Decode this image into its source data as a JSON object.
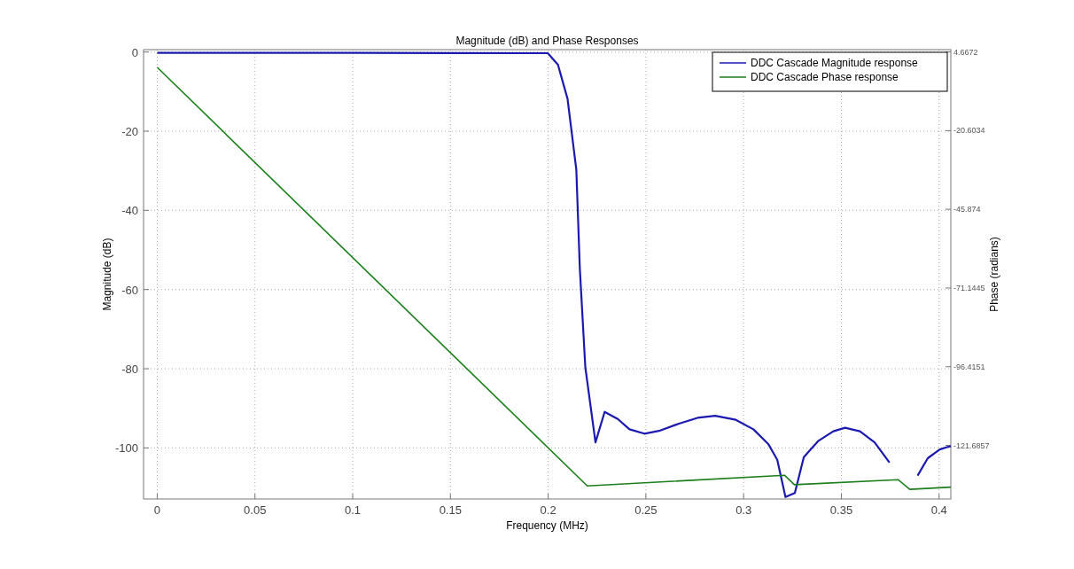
{
  "chart_data": {
    "type": "line",
    "title": "Magnitude (dB) and Phase Responses",
    "xlabel": "Frequency (MHz)",
    "ylabel": "Magnitude (dB)",
    "y2label": "Phase (radians)",
    "xlim": [
      -0.007,
      0.406
    ],
    "xticks": [
      0,
      0.05,
      0.1,
      0.15,
      0.2,
      0.25,
      0.3,
      0.35,
      0.4
    ],
    "ylim": [
      -112.9,
      0.6
    ],
    "yticks": [
      -100,
      -80,
      -60,
      -40,
      -20,
      0
    ],
    "y2lim": [
      -138.9,
      5.4
    ],
    "y2ticks": [
      -121.6857,
      -96.4151,
      -71.1445,
      -45.874,
      -20.6034,
      4.6672
    ],
    "grid": true,
    "legend": "top right",
    "line_style": "solid",
    "series": [
      {
        "name": "DDC Cascade Magnitude response",
        "color": "#1a1ab0",
        "x": [
          0,
          0.1,
          0.1998,
          0.205,
          0.2099,
          0.2144,
          0.2162,
          0.219,
          0.2242,
          0.2289,
          0.2356,
          0.2416,
          0.2492,
          0.2567,
          0.2673,
          0.2764,
          0.2854,
          0.296,
          0.305,
          0.3126,
          0.3172,
          0.3214,
          0.3262,
          0.3308,
          0.3383,
          0.3459,
          0.3519,
          0.3595,
          0.367,
          0.3746,
          0.3803,
          0.383,
          0.3867,
          0.389,
          0.3942,
          0.4003,
          0.4048,
          0.406
        ],
        "values": [
          -0.2,
          -0.2,
          -0.3,
          -3.2,
          -11.8,
          -29.7,
          -54.7,
          -79.6,
          -98.6,
          -90.9,
          -92.7,
          -95.3,
          -96.4,
          -95.7,
          -93.8,
          -92.4,
          -91.9,
          -92.9,
          -95.3,
          -99.0,
          -103.0,
          -112.4,
          -111.4,
          -102.3,
          -98.2,
          -95.8,
          -94.9,
          -95.8,
          -98.6,
          -103.7,
          null,
          null,
          null,
          -107.0,
          -102.6,
          -100.4,
          -99.7,
          -99.6
        ]
      },
      {
        "name": "DDC Cascade Phase response",
        "color": "#1a7f1a",
        "axis": "y2",
        "x": [
          0,
          0.22,
          0.321,
          0.326,
          0.379,
          0.385,
          0.406
        ],
        "values": [
          -0.3,
          -134.7,
          -131.3,
          -134.3,
          -132.7,
          -135.8,
          -135.1
        ]
      }
    ]
  }
}
